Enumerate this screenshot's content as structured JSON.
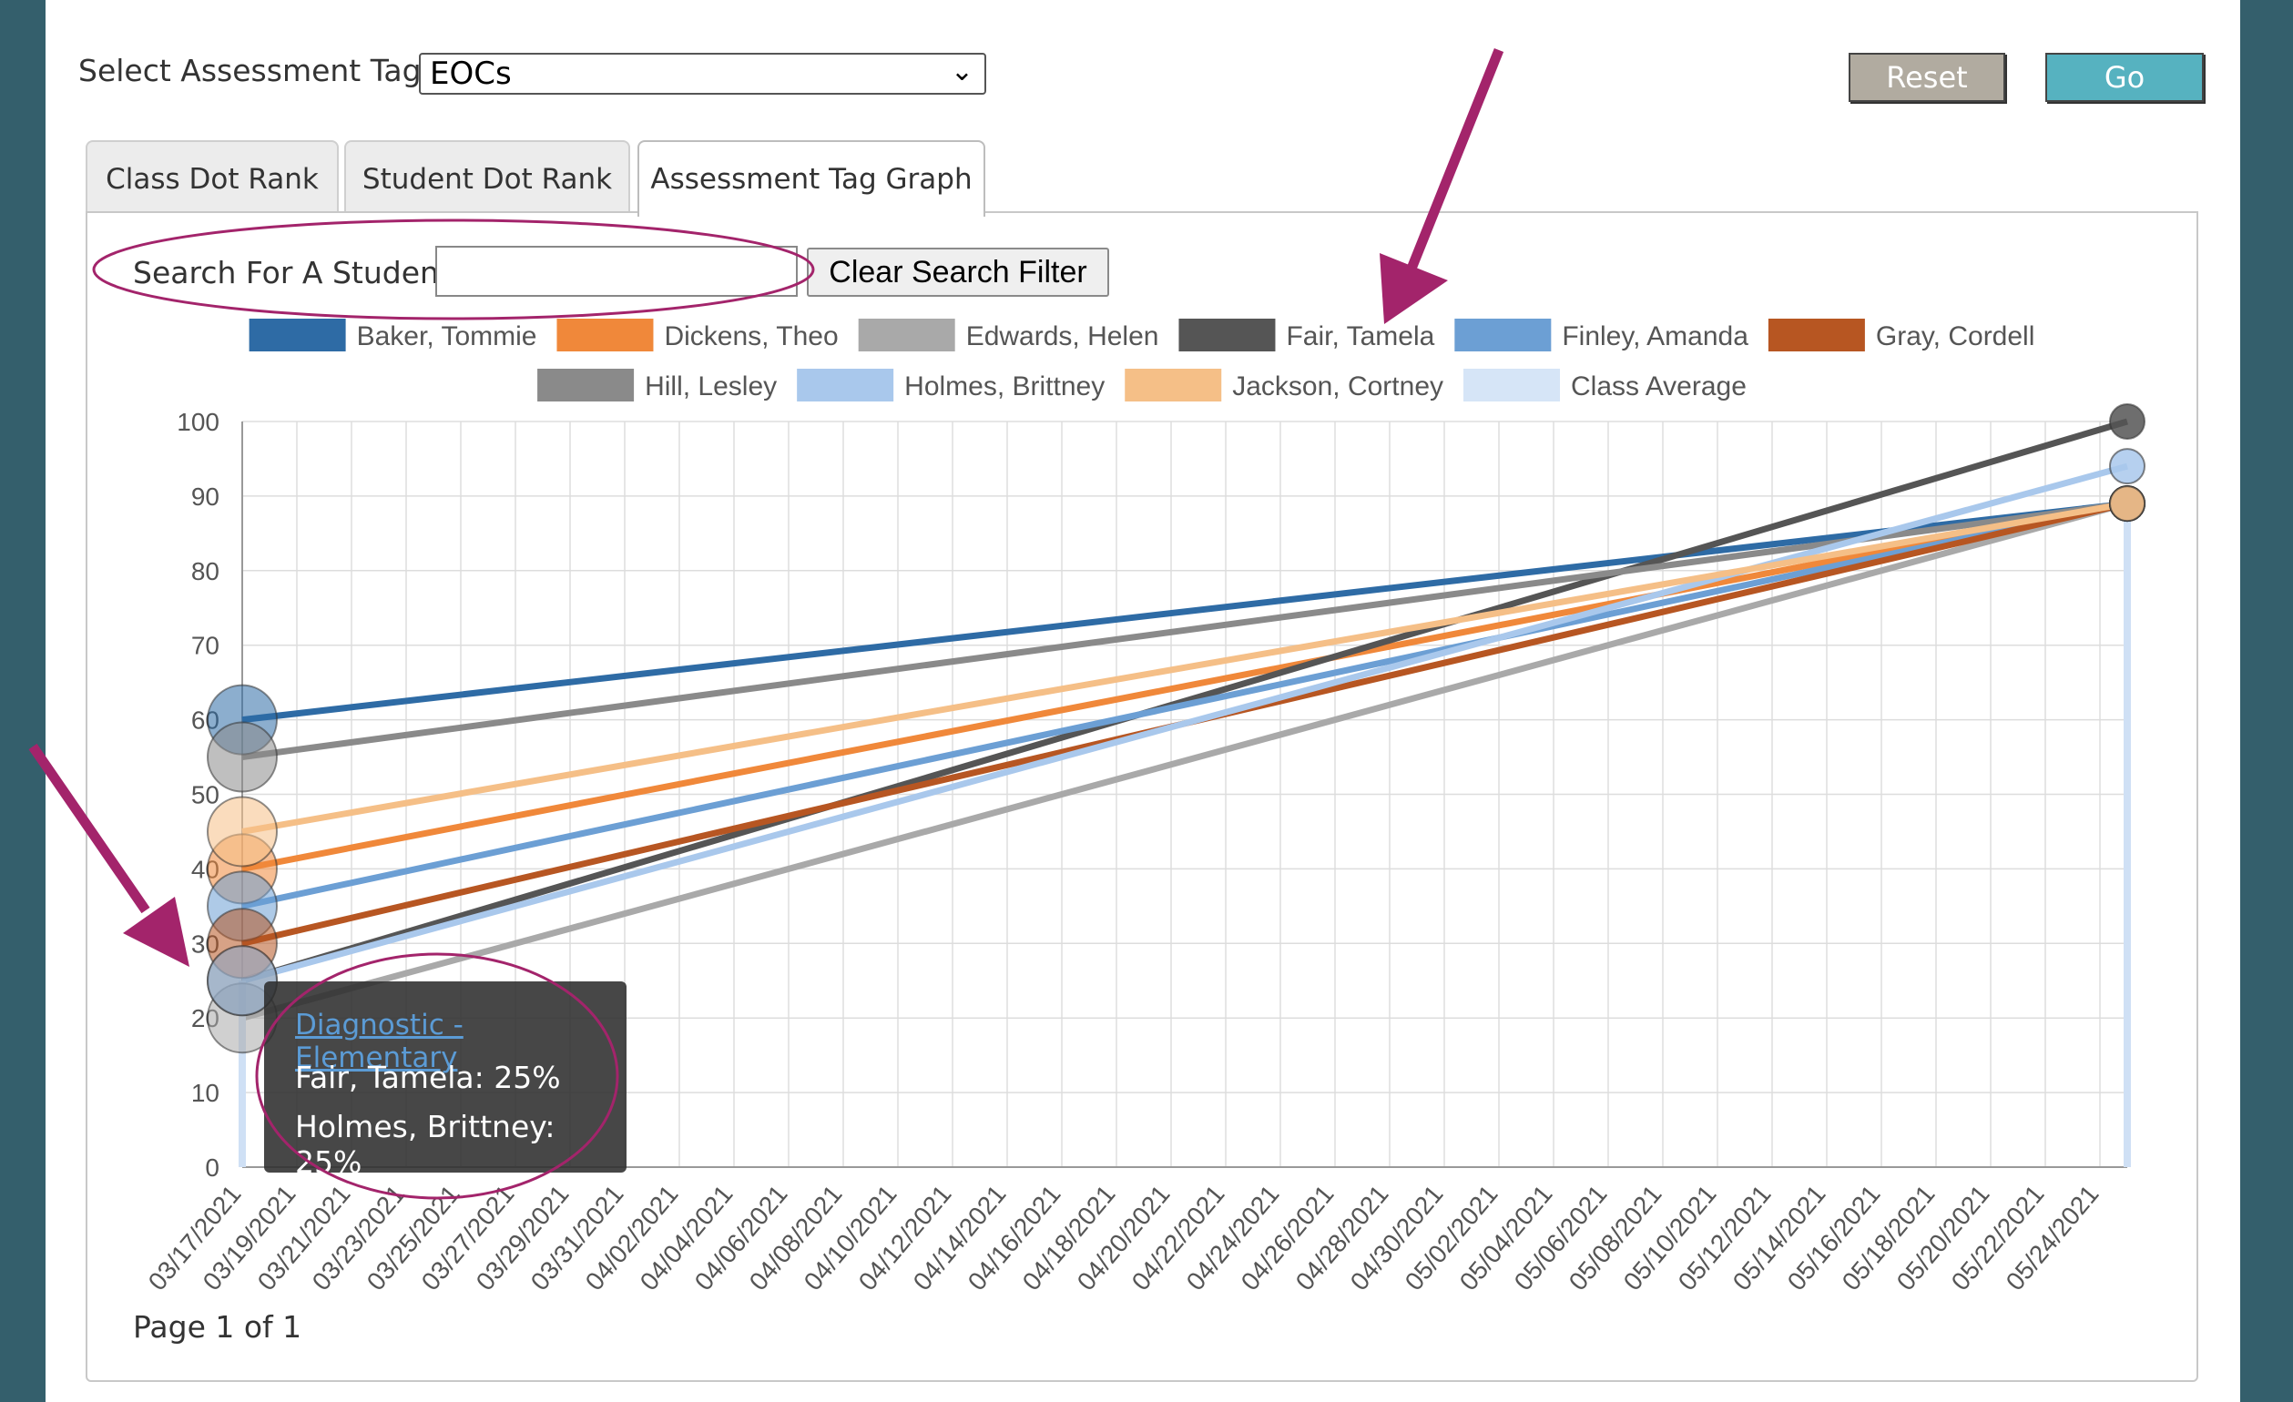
{
  "toolbar": {
    "tag_label": "Select Assessment Tag:",
    "tag_value": "EOCs",
    "reset_label": "Reset",
    "go_label": "Go"
  },
  "tabs": [
    {
      "label": "Class Dot Rank",
      "active": false
    },
    {
      "label": "Student Dot Rank",
      "active": false
    },
    {
      "label": "Assessment Tag Graph",
      "active": true
    }
  ],
  "search": {
    "label": "Search For A Student:",
    "value": "",
    "clear_label": "Clear Search Filter"
  },
  "tooltip": {
    "title": "Diagnostic - Elementary",
    "lines": [
      "Fair, Tamela: 25%",
      "Holmes, Brittney: 25%"
    ]
  },
  "pagination": {
    "text": "Page 1 of 1"
  },
  "colors": {
    "sidebar": "#345f6c",
    "annotation_magenta": "#a3246b",
    "go_button": "#56b2c0",
    "reset_button": "#b1aba0"
  },
  "chart_data": {
    "type": "line",
    "ylim": [
      0,
      100
    ],
    "yticks": [
      0,
      10,
      20,
      30,
      40,
      50,
      60,
      70,
      80,
      90,
      100
    ],
    "x_dates": [
      "03/17/2021",
      "05/25/2021"
    ],
    "xticks": [
      "03/17/2021",
      "03/19/2021",
      "03/21/2021",
      "03/23/2021",
      "03/25/2021",
      "03/27/2021",
      "03/29/2021",
      "03/31/2021",
      "04/02/2021",
      "04/04/2021",
      "04/06/2021",
      "04/08/2021",
      "04/10/2021",
      "04/12/2021",
      "04/14/2021",
      "04/16/2021",
      "04/18/2021",
      "04/20/2021",
      "04/22/2021",
      "04/24/2021",
      "04/26/2021",
      "04/28/2021",
      "04/30/2021",
      "05/02/2021",
      "05/04/2021",
      "05/06/2021",
      "05/08/2021",
      "05/10/2021",
      "05/12/2021",
      "05/14/2021",
      "05/16/2021",
      "05/18/2021",
      "05/20/2021",
      "05/22/2021",
      "05/24/2021"
    ],
    "grid": true,
    "legend_position": "top-center",
    "series": [
      {
        "name": "Baker, Tommie",
        "color": "#2e6ba5",
        "values": [
          60,
          89
        ]
      },
      {
        "name": "Dickens, Theo",
        "color": "#f0883a",
        "values": [
          40,
          89
        ]
      },
      {
        "name": "Edwards, Helen",
        "color": "#a9a9a9",
        "values": [
          20,
          89
        ]
      },
      {
        "name": "Fair, Tamela",
        "color": "#555555",
        "values": [
          25,
          100
        ]
      },
      {
        "name": "Finley, Amanda",
        "color": "#6c9fd4",
        "values": [
          35,
          89
        ]
      },
      {
        "name": "Gray, Cordell",
        "color": "#b75622",
        "values": [
          30,
          89
        ]
      },
      {
        "name": "Hill, Lesley",
        "color": "#8a8a8a",
        "values": [
          55,
          89
        ]
      },
      {
        "name": "Holmes, Brittney",
        "color": "#a9c8ec",
        "values": [
          25,
          94
        ]
      },
      {
        "name": "Jackson, Cortney",
        "color": "#f5bf87",
        "values": [
          45,
          89
        ]
      },
      {
        "name": "Class Average",
        "color": "#d6e5f7",
        "values": [
          null,
          null
        ]
      }
    ]
  }
}
